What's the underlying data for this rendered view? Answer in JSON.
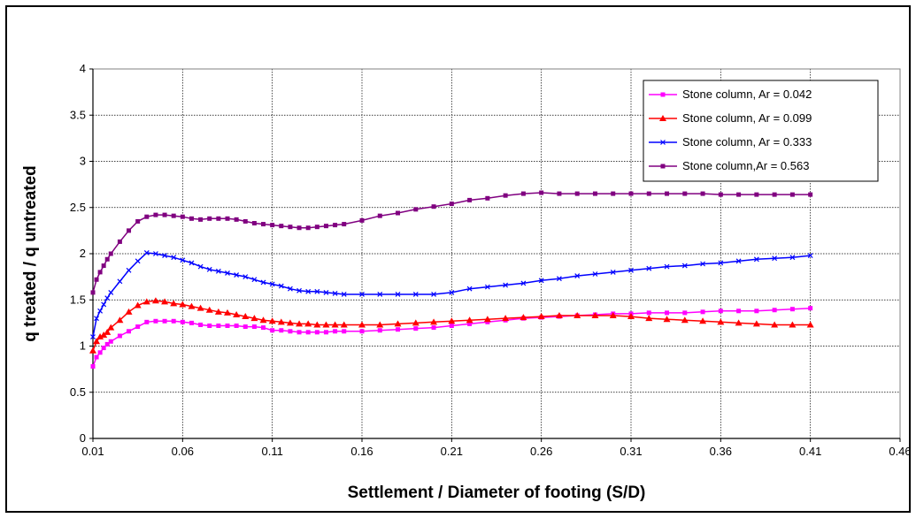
{
  "chart_data": {
    "type": "line",
    "title": "",
    "xlabel": "Settlement / Diameter of footing (S/D)",
    "ylabel": "q treated / q untreated",
    "xlim": [
      0.01,
      0.46
    ],
    "ylim": [
      0,
      4
    ],
    "xticks": [
      "0.01",
      "0.06",
      "0.11",
      "0.16",
      "0.21",
      "0.26",
      "0.31",
      "0.36",
      "0.41",
      "0.46"
    ],
    "yticks": [
      "0",
      "0.5",
      "1",
      "1.5",
      "2",
      "2.5",
      "3",
      "3.5",
      "4"
    ],
    "grid": true,
    "legend_position": "top-right",
    "series": [
      {
        "name": "Stone column, Ar = 0.042",
        "color": "#ff00ff",
        "marker": "square",
        "x": [
          0.01,
          0.012,
          0.014,
          0.016,
          0.018,
          0.02,
          0.025,
          0.03,
          0.035,
          0.04,
          0.045,
          0.05,
          0.055,
          0.06,
          0.065,
          0.07,
          0.075,
          0.08,
          0.085,
          0.09,
          0.095,
          0.1,
          0.105,
          0.11,
          0.115,
          0.12,
          0.125,
          0.13,
          0.135,
          0.14,
          0.145,
          0.15,
          0.16,
          0.17,
          0.18,
          0.19,
          0.2,
          0.21,
          0.22,
          0.23,
          0.24,
          0.25,
          0.26,
          0.27,
          0.28,
          0.29,
          0.3,
          0.31,
          0.32,
          0.33,
          0.34,
          0.35,
          0.36,
          0.37,
          0.38,
          0.39,
          0.4,
          0.41
        ],
        "y": [
          0.78,
          0.88,
          0.93,
          0.98,
          1.02,
          1.05,
          1.11,
          1.16,
          1.21,
          1.26,
          1.27,
          1.27,
          1.27,
          1.26,
          1.25,
          1.23,
          1.22,
          1.22,
          1.22,
          1.22,
          1.21,
          1.21,
          1.2,
          1.17,
          1.17,
          1.16,
          1.15,
          1.15,
          1.15,
          1.15,
          1.16,
          1.16,
          1.16,
          1.17,
          1.18,
          1.19,
          1.2,
          1.22,
          1.24,
          1.26,
          1.28,
          1.3,
          1.31,
          1.32,
          1.33,
          1.34,
          1.35,
          1.35,
          1.36,
          1.36,
          1.36,
          1.37,
          1.38,
          1.38,
          1.38,
          1.39,
          1.4,
          1.41
        ]
      },
      {
        "name": "Stone column, Ar = 0.099",
        "color": "#ff0000",
        "marker": "triangle",
        "x": [
          0.01,
          0.012,
          0.014,
          0.016,
          0.018,
          0.02,
          0.025,
          0.03,
          0.035,
          0.04,
          0.045,
          0.05,
          0.055,
          0.06,
          0.065,
          0.07,
          0.075,
          0.08,
          0.085,
          0.09,
          0.095,
          0.1,
          0.105,
          0.11,
          0.115,
          0.12,
          0.125,
          0.13,
          0.135,
          0.14,
          0.145,
          0.15,
          0.16,
          0.17,
          0.18,
          0.19,
          0.2,
          0.21,
          0.22,
          0.23,
          0.24,
          0.25,
          0.26,
          0.27,
          0.28,
          0.29,
          0.3,
          0.31,
          0.32,
          0.33,
          0.34,
          0.35,
          0.36,
          0.37,
          0.38,
          0.39,
          0.4,
          0.41
        ],
        "y": [
          0.95,
          1.05,
          1.1,
          1.12,
          1.15,
          1.2,
          1.28,
          1.37,
          1.44,
          1.48,
          1.49,
          1.48,
          1.46,
          1.45,
          1.43,
          1.41,
          1.39,
          1.37,
          1.36,
          1.34,
          1.32,
          1.3,
          1.28,
          1.27,
          1.26,
          1.25,
          1.24,
          1.24,
          1.23,
          1.23,
          1.23,
          1.23,
          1.23,
          1.23,
          1.24,
          1.25,
          1.26,
          1.27,
          1.28,
          1.29,
          1.3,
          1.31,
          1.32,
          1.33,
          1.33,
          1.33,
          1.33,
          1.32,
          1.3,
          1.29,
          1.28,
          1.27,
          1.26,
          1.25,
          1.24,
          1.23,
          1.23,
          1.23
        ]
      },
      {
        "name": "Stone column, Ar = 0.333",
        "color": "#0000ff",
        "marker": "x",
        "x": [
          0.01,
          0.012,
          0.014,
          0.016,
          0.018,
          0.02,
          0.025,
          0.03,
          0.035,
          0.04,
          0.045,
          0.05,
          0.055,
          0.06,
          0.065,
          0.07,
          0.075,
          0.08,
          0.085,
          0.09,
          0.095,
          0.1,
          0.105,
          0.11,
          0.115,
          0.12,
          0.125,
          0.13,
          0.135,
          0.14,
          0.145,
          0.15,
          0.16,
          0.17,
          0.18,
          0.19,
          0.2,
          0.21,
          0.22,
          0.23,
          0.24,
          0.25,
          0.26,
          0.27,
          0.28,
          0.29,
          0.3,
          0.31,
          0.32,
          0.33,
          0.34,
          0.35,
          0.36,
          0.37,
          0.38,
          0.39,
          0.4,
          0.41
        ],
        "y": [
          1.1,
          1.3,
          1.38,
          1.45,
          1.52,
          1.58,
          1.7,
          1.82,
          1.92,
          2.01,
          2.0,
          1.98,
          1.96,
          1.93,
          1.9,
          1.86,
          1.83,
          1.81,
          1.79,
          1.77,
          1.75,
          1.72,
          1.69,
          1.67,
          1.65,
          1.62,
          1.6,
          1.59,
          1.59,
          1.58,
          1.57,
          1.56,
          1.56,
          1.56,
          1.56,
          1.56,
          1.56,
          1.58,
          1.62,
          1.64,
          1.66,
          1.68,
          1.71,
          1.73,
          1.76,
          1.78,
          1.8,
          1.82,
          1.84,
          1.86,
          1.87,
          1.89,
          1.9,
          1.92,
          1.94,
          1.95,
          1.96,
          1.98
        ]
      },
      {
        "name": "Stone column,Ar = 0.563",
        "color": "#800080",
        "marker": "square",
        "x": [
          0.01,
          0.012,
          0.014,
          0.016,
          0.018,
          0.02,
          0.025,
          0.03,
          0.035,
          0.04,
          0.045,
          0.05,
          0.055,
          0.06,
          0.065,
          0.07,
          0.075,
          0.08,
          0.085,
          0.09,
          0.095,
          0.1,
          0.105,
          0.11,
          0.115,
          0.12,
          0.125,
          0.13,
          0.135,
          0.14,
          0.145,
          0.15,
          0.16,
          0.17,
          0.18,
          0.19,
          0.2,
          0.21,
          0.22,
          0.23,
          0.24,
          0.25,
          0.26,
          0.27,
          0.28,
          0.29,
          0.3,
          0.31,
          0.32,
          0.33,
          0.34,
          0.35,
          0.36,
          0.37,
          0.38,
          0.39,
          0.4,
          0.41
        ],
        "y": [
          1.58,
          1.72,
          1.8,
          1.87,
          1.94,
          2.0,
          2.13,
          2.25,
          2.35,
          2.4,
          2.42,
          2.42,
          2.41,
          2.4,
          2.38,
          2.37,
          2.38,
          2.38,
          2.38,
          2.37,
          2.35,
          2.33,
          2.32,
          2.31,
          2.3,
          2.29,
          2.28,
          2.28,
          2.29,
          2.3,
          2.31,
          2.32,
          2.36,
          2.41,
          2.44,
          2.48,
          2.51,
          2.54,
          2.58,
          2.6,
          2.63,
          2.65,
          2.66,
          2.65,
          2.65,
          2.65,
          2.65,
          2.65,
          2.65,
          2.65,
          2.65,
          2.65,
          2.64,
          2.64,
          2.64,
          2.64,
          2.64,
          2.64
        ]
      }
    ]
  }
}
